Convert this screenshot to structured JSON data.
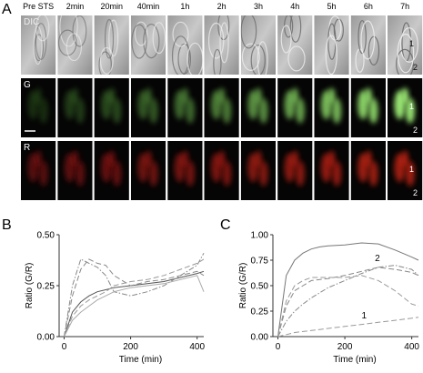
{
  "panels": {
    "labels": [
      "A",
      "B",
      "C"
    ],
    "columns": [
      "Pre STS",
      "2min",
      "20min",
      "40min",
      "1h",
      "2h",
      "3h",
      "4h",
      "5h",
      "6h",
      "7h"
    ],
    "rows": [
      "DIC",
      "G",
      "R"
    ],
    "cell_labels": [
      "1",
      "2"
    ]
  },
  "chart_data": [
    {
      "type": "line",
      "y_label": "Ratio (G/R)",
      "x_label": "Time (min)",
      "x": [
        0,
        25,
        50,
        75,
        100,
        125,
        150,
        200,
        250,
        300,
        350,
        400,
        420
      ],
      "xlim": [
        -15,
        420
      ],
      "xticks": [
        0,
        200,
        400
      ],
      "ylim": [
        0,
        0.5
      ],
      "yticks": [
        {
          "value": 0,
          "label": "0.00"
        },
        {
          "value": 0.25,
          "label": "0.25"
        },
        {
          "value": 0.5,
          "label": "0.50"
        }
      ],
      "series": [
        {
          "color": "#555555",
          "style": "solid",
          "values": [
            0,
            0.12,
            0.17,
            0.2,
            0.22,
            0.23,
            0.24,
            0.25,
            0.26,
            0.27,
            0.29,
            0.31,
            0.32
          ]
        },
        {
          "color": "#888888",
          "style": "dashed",
          "values": [
            0,
            0.2,
            0.33,
            0.38,
            0.36,
            0.35,
            0.3,
            0.25,
            0.27,
            0.28,
            0.3,
            0.32,
            0.3
          ]
        },
        {
          "color": "#888888",
          "style": "dashdot",
          "values": [
            0,
            0.25,
            0.38,
            0.36,
            0.34,
            0.3,
            0.22,
            0.2,
            0.22,
            0.25,
            0.3,
            0.35,
            0.41
          ]
        },
        {
          "color": "#999999",
          "style": "dashed",
          "values": [
            0,
            0.1,
            0.15,
            0.18,
            0.2,
            0.22,
            0.25,
            0.27,
            0.28,
            0.3,
            0.33,
            0.36,
            0.38
          ]
        },
        {
          "color": "#aaaaaa",
          "style": "solid",
          "values": [
            0,
            0.08,
            0.12,
            0.15,
            0.18,
            0.2,
            0.22,
            0.24,
            0.25,
            0.26,
            0.28,
            0.3,
            0.22
          ]
        }
      ]
    },
    {
      "type": "line",
      "y_label": "Ratio (G/R)",
      "x_label": "Time (min)",
      "annotations": [
        "2",
        "1"
      ],
      "x": [
        0,
        25,
        50,
        75,
        100,
        125,
        150,
        200,
        250,
        300,
        350,
        400,
        420
      ],
      "xlim": [
        -15,
        420
      ],
      "xticks": [
        0,
        200,
        400
      ],
      "ylim": [
        0,
        1
      ],
      "yticks": [
        {
          "value": 0,
          "label": "0.00"
        },
        {
          "value": 0.25,
          "label": "0.25"
        },
        {
          "value": 0.5,
          "label": "0.50"
        },
        {
          "value": 0.75,
          "label": "0.75"
        },
        {
          "value": 1,
          "label": "1.00"
        }
      ],
      "series": [
        {
          "color": "#777777",
          "style": "solid",
          "values": [
            0,
            0.6,
            0.75,
            0.82,
            0.86,
            0.88,
            0.89,
            0.9,
            0.92,
            0.91,
            0.85,
            0.78,
            0.75
          ]
        },
        {
          "color": "#888888",
          "style": "dashed",
          "values": [
            0,
            0.3,
            0.45,
            0.5,
            0.55,
            0.56,
            0.57,
            0.6,
            0.64,
            0.68,
            0.66,
            0.63,
            0.6
          ]
        },
        {
          "color": "#888888",
          "style": "dashdot",
          "values": [
            0,
            0.15,
            0.25,
            0.32,
            0.38,
            0.43,
            0.48,
            0.55,
            0.62,
            0.68,
            0.7,
            0.66,
            0.6
          ]
        },
        {
          "color": "#999999",
          "style": "dashed",
          "values": [
            0,
            0.35,
            0.5,
            0.55,
            0.58,
            0.58,
            0.58,
            0.58,
            0.6,
            0.55,
            0.45,
            0.32,
            0.3
          ]
        },
        {
          "color": "#999999",
          "style": "dashed",
          "values": [
            0,
            0.02,
            0.04,
            0.05,
            0.06,
            0.07,
            0.08,
            0.1,
            0.12,
            0.14,
            0.16,
            0.18,
            0.19
          ]
        }
      ]
    }
  ]
}
